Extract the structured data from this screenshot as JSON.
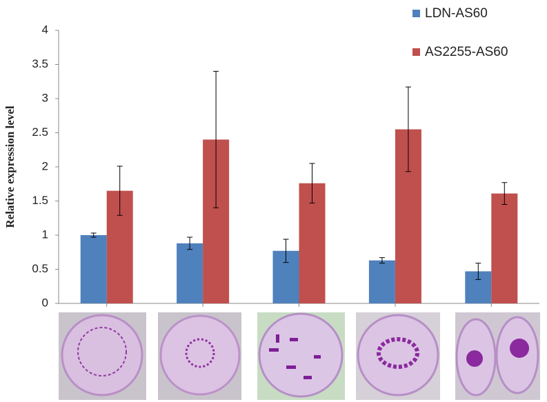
{
  "chart_data": {
    "type": "bar",
    "y_label": "Relative expression level",
    "categories": [
      null,
      null,
      null,
      null,
      null
    ],
    "series": [
      {
        "name": "LDN-AS60",
        "color": "#4f81bd",
        "values": [
          1.0,
          0.88,
          0.77,
          0.63,
          0.47
        ],
        "errors": [
          0.03,
          0.09,
          0.17,
          0.04,
          0.12
        ]
      },
      {
        "name": "AS2255-AS60",
        "color": "#c0504d",
        "values": [
          1.65,
          2.4,
          1.76,
          2.55,
          1.61
        ],
        "errors": [
          0.36,
          1.0,
          0.29,
          0.62,
          0.16
        ]
      }
    ],
    "ylim": [
      0,
      4
    ],
    "yticks": [
      0,
      0.5,
      1,
      1.5,
      2,
      2.5,
      3,
      3.5,
      4
    ],
    "grid": false,
    "legend": "top-right"
  }
}
